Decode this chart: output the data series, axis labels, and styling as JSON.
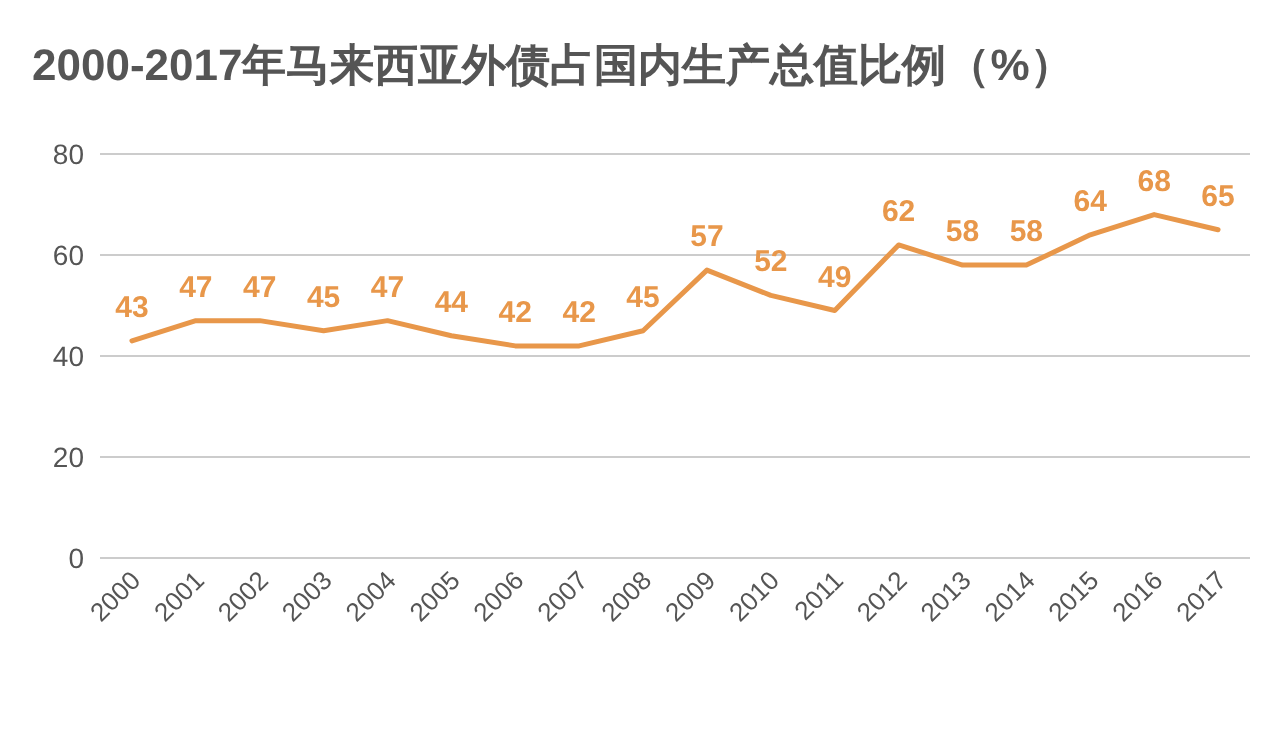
{
  "chart_data": {
    "type": "line",
    "title": "2000-2017年马来西亚外债占国内生产总值比例（%）",
    "categories": [
      "2000",
      "2001",
      "2002",
      "2003",
      "2004",
      "2005",
      "2006",
      "2007",
      "2008",
      "2009",
      "2010",
      "2011",
      "2012",
      "2013",
      "2014",
      "2015",
      "2016",
      "2017"
    ],
    "values": [
      43,
      47,
      47,
      45,
      47,
      44,
      42,
      42,
      45,
      57,
      52,
      49,
      62,
      58,
      58,
      64,
      68,
      65
    ],
    "color": "#e8974a",
    "ylim": [
      0,
      80
    ],
    "yticks": [
      0,
      20,
      40,
      60,
      80
    ],
    "grid": "y",
    "data_labels": true,
    "marker": "none",
    "line_style": "solid"
  }
}
